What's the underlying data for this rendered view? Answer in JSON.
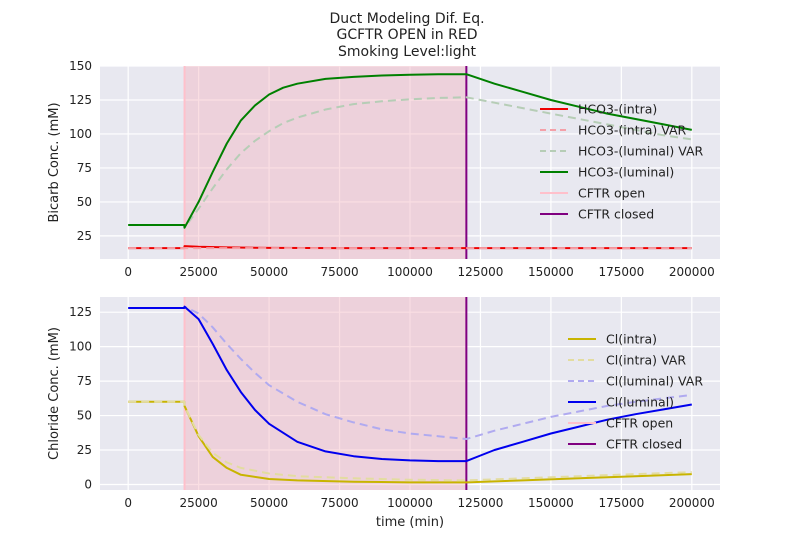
{
  "figure": {
    "title_lines": [
      "Duct Modeling Dif. Eq.",
      "GCFTR OPEN in RED",
      "Smoking Level:light"
    ],
    "background": "#e8e8f0",
    "grid_color": "#ffffff",
    "shade_color": "#f4b6c2"
  },
  "chart_data": [
    {
      "type": "line",
      "ylabel": "Bicarb Conc. (mM)",
      "xlabel": "",
      "xlim": [
        -10000,
        210000
      ],
      "ylim": [
        8,
        150
      ],
      "xticks": [
        0,
        25000,
        50000,
        75000,
        100000,
        125000,
        150000,
        175000,
        200000
      ],
      "yticks": [
        25,
        50,
        75,
        100,
        125,
        150
      ],
      "shaded_region": [
        20000,
        120000
      ],
      "vlines": [
        {
          "x": 20000,
          "label": "CFTR open",
          "color": "#ffc0cb"
        },
        {
          "x": 120000,
          "label": "CFTR closed",
          "color": "#800080"
        }
      ],
      "legend_position": "right",
      "series": [
        {
          "name": "HCO3-(intra)",
          "color": "#ee0000",
          "dash": "",
          "width": 2,
          "x": [
            0,
            19900,
            20000,
            25000,
            35000,
            50000,
            75000,
            100000,
            119900,
            120000,
            150000,
            200000
          ],
          "y": [
            16,
            16,
            17.5,
            17,
            16.5,
            16.2,
            16,
            16,
            16,
            16,
            16,
            16
          ]
        },
        {
          "name": "HCO3-(intra) VAR",
          "color": "#f4a0a8",
          "dash": "8,5",
          "width": 2,
          "x": [
            0,
            200000
          ],
          "y": [
            16,
            16
          ]
        },
        {
          "name": "HCO3-(luminal) VAR",
          "color": "#b6cdb6",
          "dash": "8,5",
          "width": 2,
          "x": [
            0,
            19900,
            20000,
            25000,
            30000,
            35000,
            40000,
            45000,
            50000,
            55000,
            60000,
            70000,
            80000,
            90000,
            100000,
            110000,
            120000,
            130000,
            140000,
            150000,
            160000,
            170000,
            180000,
            190000,
            200000
          ],
          "y": [
            33,
            33,
            31,
            45,
            60,
            74,
            86,
            95,
            102,
            108,
            112,
            118,
            122,
            124,
            125.5,
            126.5,
            127,
            123,
            119,
            115,
            111,
            107,
            103,
            99,
            96
          ]
        },
        {
          "name": "HCO3-(luminal)",
          "color": "#008000",
          "dash": "",
          "width": 2,
          "x": [
            0,
            19900,
            20000,
            25000,
            30000,
            35000,
            40000,
            45000,
            50000,
            55000,
            60000,
            70000,
            80000,
            90000,
            100000,
            110000,
            120000,
            130000,
            140000,
            150000,
            160000,
            170000,
            180000,
            190000,
            200000
          ],
          "y": [
            33,
            33,
            31,
            50,
            72,
            93,
            110,
            121,
            129,
            134,
            137,
            140.5,
            142,
            143,
            143.5,
            144,
            144,
            137,
            131,
            125,
            120,
            115,
            111,
            107,
            103
          ]
        },
        {
          "name": "CFTR open",
          "color": "#ffc0cb",
          "dash": "",
          "width": 2,
          "x": [],
          "y": []
        },
        {
          "name": "CFTR closed",
          "color": "#800080",
          "dash": "",
          "width": 2,
          "x": [],
          "y": []
        }
      ]
    },
    {
      "type": "line",
      "ylabel": "Chloride Conc. (mM)",
      "xlabel": "time (min)",
      "xlim": [
        -10000,
        210000
      ],
      "ylim": [
        -4,
        136
      ],
      "xticks": [
        0,
        25000,
        50000,
        75000,
        100000,
        125000,
        150000,
        175000,
        200000
      ],
      "yticks": [
        0,
        25,
        50,
        75,
        100,
        125
      ],
      "shaded_region": [
        20000,
        120000
      ],
      "vlines": [
        {
          "x": 20000,
          "label": "CFTR open",
          "color": "#ffc0cb"
        },
        {
          "x": 120000,
          "label": "CFTR closed",
          "color": "#800080"
        }
      ],
      "legend_position": "right",
      "series": [
        {
          "name": "Cl(intra)",
          "color": "#c8b400",
          "dash": "",
          "width": 2,
          "x": [
            0,
            19900,
            20000,
            25000,
            30000,
            35000,
            40000,
            50000,
            60000,
            80000,
            100000,
            120000,
            140000,
            160000,
            180000,
            200000
          ],
          "y": [
            60,
            60,
            57,
            35,
            20,
            12,
            7,
            4,
            3,
            2,
            1.5,
            1.5,
            3,
            4.5,
            6,
            7.5
          ]
        },
        {
          "name": "Cl(intra) VAR",
          "color": "#e3dca0",
          "dash": "8,5",
          "width": 2,
          "x": [
            0,
            19900,
            20000,
            25000,
            30000,
            35000,
            40000,
            50000,
            60000,
            80000,
            100000,
            120000,
            140000,
            160000,
            180000,
            200000
          ],
          "y": [
            60,
            60,
            57,
            36,
            23,
            16,
            12,
            8,
            6,
            4.5,
            3.5,
            3,
            4.5,
            6,
            7.5,
            9
          ]
        },
        {
          "name": "Cl(luminal) VAR",
          "color": "#b0aaf0",
          "dash": "8,5",
          "width": 2,
          "x": [
            0,
            19900,
            20000,
            25000,
            30000,
            35000,
            40000,
            45000,
            50000,
            60000,
            70000,
            80000,
            90000,
            100000,
            110000,
            120000,
            130000,
            140000,
            150000,
            160000,
            170000,
            180000,
            190000,
            200000
          ],
          "y": [
            128,
            128,
            129,
            124,
            114,
            102,
            91,
            81,
            72,
            60,
            51,
            45,
            40,
            37,
            35,
            33,
            39,
            44,
            49,
            53,
            57,
            60,
            62.5,
            65
          ]
        },
        {
          "name": "Cl(luminal)",
          "color": "#0000ee",
          "dash": "",
          "width": 2,
          "x": [
            0,
            19900,
            20000,
            25000,
            30000,
            35000,
            40000,
            45000,
            50000,
            60000,
            70000,
            80000,
            90000,
            100000,
            110000,
            120000,
            125000,
            130000,
            140000,
            150000,
            160000,
            170000,
            180000,
            190000,
            200000
          ],
          "y": [
            128,
            128,
            129,
            120,
            102,
            83,
            67,
            54,
            44,
            31,
            24,
            20.5,
            18.5,
            17.5,
            17,
            17,
            21,
            25,
            31,
            37,
            42,
            47,
            51,
            54.5,
            58
          ]
        },
        {
          "name": "CFTR open",
          "color": "#ffc0cb",
          "dash": "",
          "width": 2,
          "x": [],
          "y": []
        },
        {
          "name": "CFTR closed",
          "color": "#800080",
          "dash": "",
          "width": 2,
          "x": [],
          "y": []
        }
      ]
    }
  ]
}
